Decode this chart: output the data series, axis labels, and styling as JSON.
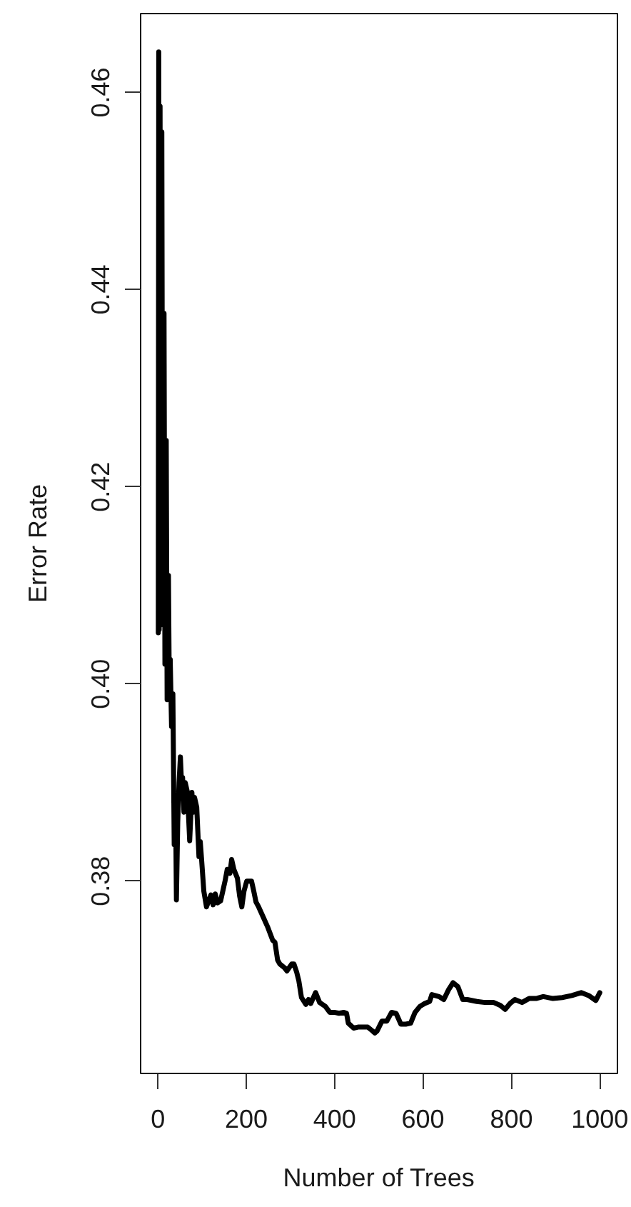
{
  "chart_data": {
    "type": "line",
    "xlabel": "Number of Trees",
    "ylabel": "Error Rate",
    "xlim": [
      -39,
      1040
    ],
    "ylim": [
      0.3605,
      0.468
    ],
    "xticks": [
      0,
      200,
      400,
      600,
      800,
      1000
    ],
    "yticks": [
      0.38,
      {
        "value": 0.4,
        "label": "0.40"
      },
      0.42,
      0.44,
      0.46
    ],
    "grid": false,
    "x": [
      1,
      2,
      3,
      5,
      7,
      9,
      11,
      14,
      16,
      19,
      21,
      24,
      26,
      28,
      31,
      34,
      37,
      40,
      42,
      45,
      48,
      51,
      54,
      56,
      59,
      62,
      67,
      72,
      77,
      80,
      83,
      88,
      93,
      96,
      99,
      104,
      110,
      115,
      120,
      125,
      130,
      135,
      142,
      147,
      152,
      157,
      163,
      167,
      172,
      180,
      185,
      190,
      195,
      201,
      212,
      217,
      222,
      228,
      238,
      249,
      260,
      265,
      271,
      276,
      287,
      292,
      303,
      308,
      314,
      319,
      325,
      335,
      341,
      346,
      357,
      366,
      379,
      389,
      399,
      410,
      421,
      427,
      431,
      443,
      453,
      464,
      475,
      486,
      491,
      496,
      507,
      518,
      529,
      539,
      550,
      561,
      572,
      582,
      593,
      604,
      615,
      620,
      636,
      647,
      658,
      668,
      679,
      690,
      700,
      722,
      740,
      760,
      775,
      786,
      797,
      808,
      824,
      840,
      856,
      872,
      894,
      915,
      937,
      958,
      975,
      991,
      1000
    ],
    "series": [
      {
        "color": "#000000",
        "values": [
          0.4052,
          0.4641,
          0.4055,
          0.4586,
          0.406,
          0.456,
          0.407,
          0.4376,
          0.402,
          0.4247,
          0.3984,
          0.411,
          0.399,
          0.4025,
          0.3957,
          0.399,
          0.3837,
          0.388,
          0.3781,
          0.386,
          0.39,
          0.3926,
          0.3895,
          0.3905,
          0.387,
          0.39,
          0.389,
          0.3841,
          0.389,
          0.387,
          0.3885,
          0.3875,
          0.3825,
          0.384,
          0.3822,
          0.379,
          0.3774,
          0.378,
          0.3786,
          0.3776,
          0.3787,
          0.3778,
          0.378,
          0.379,
          0.38,
          0.3812,
          0.3808,
          0.3822,
          0.3812,
          0.3803,
          0.3785,
          0.3774,
          0.379,
          0.38,
          0.38,
          0.379,
          0.3779,
          0.3774,
          0.3764,
          0.3753,
          0.374,
          0.3738,
          0.372,
          0.3716,
          0.3712,
          0.3709,
          0.3716,
          0.3716,
          0.3708,
          0.3699,
          0.3682,
          0.3675,
          0.368,
          0.3676,
          0.3687,
          0.3677,
          0.3673,
          0.3667,
          0.3667,
          0.3666,
          0.3667,
          0.3666,
          0.3656,
          0.3651,
          0.3652,
          0.3652,
          0.3652,
          0.3648,
          0.3646,
          0.3648,
          0.3658,
          0.3658,
          0.3667,
          0.3666,
          0.3655,
          0.3655,
          0.3656,
          0.3667,
          0.3673,
          0.3676,
          0.3678,
          0.3685,
          0.3683,
          0.368,
          0.369,
          0.3697,
          0.3693,
          0.368,
          0.368,
          0.3678,
          0.3677,
          0.3677,
          0.3674,
          0.367,
          0.3676,
          0.368,
          0.3677,
          0.3681,
          0.3681,
          0.3683,
          0.3681,
          0.3682,
          0.3684,
          0.3687,
          0.3684,
          0.3679,
          0.3687
        ]
      }
    ]
  }
}
